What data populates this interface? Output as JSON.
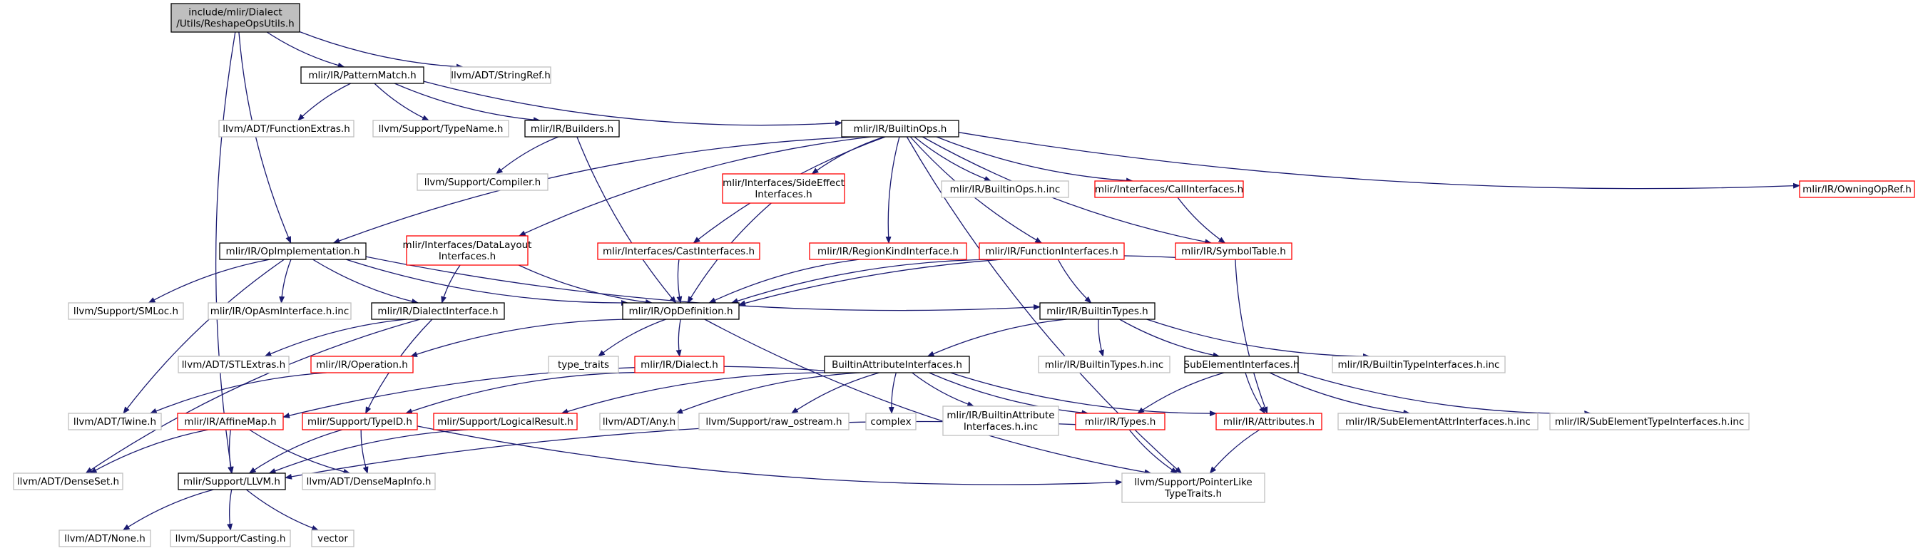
{
  "colors": {
    "edge": "#191970",
    "root_fill": "#bfbfbf",
    "normal_border": "#000000",
    "missing_border": "#bfbfbf",
    "truncated_border": "#ff0000"
  },
  "nodes": [
    {
      "id": "root",
      "lines": [
        "include/mlir/Dialect",
        "/Utils/ReshapeOpsUtils.h"
      ],
      "style": "root"
    },
    {
      "id": "patternmatch",
      "lines": [
        "mlir/IR/PatternMatch.h"
      ],
      "style": "normal"
    },
    {
      "id": "stringref",
      "lines": [
        "llvm/ADT/StringRef.h"
      ],
      "style": "missing"
    },
    {
      "id": "functionextras",
      "lines": [
        "llvm/ADT/FunctionExtras.h"
      ],
      "style": "missing"
    },
    {
      "id": "typename",
      "lines": [
        "llvm/Support/TypeName.h"
      ],
      "style": "missing"
    },
    {
      "id": "builders",
      "lines": [
        "mlir/IR/Builders.h"
      ],
      "style": "normal"
    },
    {
      "id": "builtinops",
      "lines": [
        "mlir/IR/BuiltinOps.h"
      ],
      "style": "normal"
    },
    {
      "id": "compiler",
      "lines": [
        "llvm/Support/Compiler.h"
      ],
      "style": "missing"
    },
    {
      "id": "sideeffect",
      "lines": [
        "mlir/Interfaces/SideEffect",
        "Interfaces.h"
      ],
      "style": "red"
    },
    {
      "id": "builtinopsinc",
      "lines": [
        "mlir/IR/BuiltinOps.h.inc"
      ],
      "style": "missing"
    },
    {
      "id": "callinterfaces",
      "lines": [
        "mlir/Interfaces/CallInterfaces.h"
      ],
      "style": "red"
    },
    {
      "id": "owningopref",
      "lines": [
        "mlir/IR/OwningOpRef.h"
      ],
      "style": "red"
    },
    {
      "id": "opimplementation",
      "lines": [
        "mlir/IR/OpImplementation.h"
      ],
      "style": "normal"
    },
    {
      "id": "datalayout",
      "lines": [
        "mlir/Interfaces/DataLayout",
        "Interfaces.h"
      ],
      "style": "red"
    },
    {
      "id": "castinterfaces",
      "lines": [
        "mlir/Interfaces/CastInterfaces.h"
      ],
      "style": "red"
    },
    {
      "id": "regionkind",
      "lines": [
        "mlir/IR/RegionKindInterface.h"
      ],
      "style": "red"
    },
    {
      "id": "functioninterfaces",
      "lines": [
        "mlir/IR/FunctionInterfaces.h"
      ],
      "style": "red"
    },
    {
      "id": "symboltable",
      "lines": [
        "mlir/IR/SymbolTable.h"
      ],
      "style": "red"
    },
    {
      "id": "smloc",
      "lines": [
        "llvm/Support/SMLoc.h"
      ],
      "style": "missing"
    },
    {
      "id": "opasminc",
      "lines": [
        "mlir/IR/OpAsmInterface.h.inc"
      ],
      "style": "missing"
    },
    {
      "id": "dialectinterface",
      "lines": [
        "mlir/IR/DialectInterface.h"
      ],
      "style": "normal"
    },
    {
      "id": "opdefinition",
      "lines": [
        "mlir/IR/OpDefinition.h"
      ],
      "style": "normal"
    },
    {
      "id": "builtintypes",
      "lines": [
        "mlir/IR/BuiltinTypes.h"
      ],
      "style": "normal"
    },
    {
      "id": "stlextras",
      "lines": [
        "llvm/ADT/STLExtras.h"
      ],
      "style": "missing"
    },
    {
      "id": "operation",
      "lines": [
        "mlir/IR/Operation.h"
      ],
      "style": "red"
    },
    {
      "id": "typetraits",
      "lines": [
        "type_traits"
      ],
      "style": "missing"
    },
    {
      "id": "dialect",
      "lines": [
        "mlir/IR/Dialect.h"
      ],
      "style": "red"
    },
    {
      "id": "builtinattrinterfaces",
      "lines": [
        "BuiltinAttributeInterfaces.h"
      ],
      "style": "normal"
    },
    {
      "id": "builtintypesinc",
      "lines": [
        "mlir/IR/BuiltinTypes.h.inc"
      ],
      "style": "missing"
    },
    {
      "id": "subelementinterfaces",
      "lines": [
        "SubElementInterfaces.h"
      ],
      "style": "normal"
    },
    {
      "id": "builtintypeinterfacesinc",
      "lines": [
        "mlir/IR/BuiltinTypeInterfaces.h.inc"
      ],
      "style": "missing"
    },
    {
      "id": "twine",
      "lines": [
        "llvm/ADT/Twine.h"
      ],
      "style": "missing"
    },
    {
      "id": "affinemap",
      "lines": [
        "mlir/IR/AffineMap.h"
      ],
      "style": "red"
    },
    {
      "id": "typeid",
      "lines": [
        "mlir/Support/TypeID.h"
      ],
      "style": "red"
    },
    {
      "id": "logicalresult",
      "lines": [
        "mlir/Support/LogicalResult.h"
      ],
      "style": "red"
    },
    {
      "id": "any",
      "lines": [
        "llvm/ADT/Any.h"
      ],
      "style": "missing"
    },
    {
      "id": "rawostream",
      "lines": [
        "llvm/Support/raw_ostream.h"
      ],
      "style": "missing"
    },
    {
      "id": "complex",
      "lines": [
        "complex"
      ],
      "style": "missing"
    },
    {
      "id": "builtinattrinc",
      "lines": [
        "mlir/IR/BuiltinAttribute",
        "Interfaces.h.inc"
      ],
      "style": "missing"
    },
    {
      "id": "types",
      "lines": [
        "mlir/IR/Types.h"
      ],
      "style": "red"
    },
    {
      "id": "attributes",
      "lines": [
        "mlir/IR/Attributes.h"
      ],
      "style": "red"
    },
    {
      "id": "subelementattrinc",
      "lines": [
        "mlir/IR/SubElementAttrInterfaces.h.inc"
      ],
      "style": "missing"
    },
    {
      "id": "subelementtypeinc",
      "lines": [
        "mlir/IR/SubElementTypeInterfaces.h.inc"
      ],
      "style": "missing"
    },
    {
      "id": "denseset",
      "lines": [
        "llvm/ADT/DenseSet.h"
      ],
      "style": "missing"
    },
    {
      "id": "llvmh",
      "lines": [
        "mlir/Support/LLVM.h"
      ],
      "style": "normal"
    },
    {
      "id": "densemapinfo",
      "lines": [
        "llvm/ADT/DenseMapInfo.h"
      ],
      "style": "missing"
    },
    {
      "id": "pointerlike",
      "lines": [
        "llvm/Support/PointerLike",
        "TypeTraits.h"
      ],
      "style": "missing"
    },
    {
      "id": "none",
      "lines": [
        "llvm/ADT/None.h"
      ],
      "style": "missing"
    },
    {
      "id": "casting",
      "lines": [
        "llvm/Support/Casting.h"
      ],
      "style": "missing"
    },
    {
      "id": "vector",
      "lines": [
        "vector"
      ],
      "style": "missing"
    }
  ],
  "edges": [
    [
      "root",
      "patternmatch"
    ],
    [
      "root",
      "stringref"
    ],
    [
      "root",
      "opimplementation"
    ],
    [
      "root",
      "llvmh"
    ],
    [
      "patternmatch",
      "functionextras"
    ],
    [
      "patternmatch",
      "typename"
    ],
    [
      "patternmatch",
      "builders"
    ],
    [
      "patternmatch",
      "builtinops"
    ],
    [
      "builders",
      "compiler"
    ],
    [
      "builders",
      "opdefinition"
    ],
    [
      "builtinops",
      "opimplementation"
    ],
    [
      "builtinops",
      "sideeffect"
    ],
    [
      "builtinops",
      "datalayout"
    ],
    [
      "builtinops",
      "castinterfaces"
    ],
    [
      "builtinops",
      "regionkind"
    ],
    [
      "builtinops",
      "functioninterfaces"
    ],
    [
      "builtinops",
      "builtinopsinc"
    ],
    [
      "builtinops",
      "callinterfaces"
    ],
    [
      "builtinops",
      "symboltable"
    ],
    [
      "builtinops",
      "owningopref"
    ],
    [
      "builtinops",
      "pointerlike"
    ],
    [
      "sideeffect",
      "opdefinition"
    ],
    [
      "callinterfaces",
      "symboltable"
    ],
    [
      "symboltable",
      "opdefinition"
    ],
    [
      "symboltable",
      "attributes"
    ],
    [
      "opimplementation",
      "smloc"
    ],
    [
      "opimplementation",
      "opasminc"
    ],
    [
      "opimplementation",
      "dialectinterface"
    ],
    [
      "opimplementation",
      "opdefinition"
    ],
    [
      "opimplementation",
      "builtintypes"
    ],
    [
      "opimplementation",
      "twine"
    ],
    [
      "datalayout",
      "dialectinterface"
    ],
    [
      "datalayout",
      "opdefinition"
    ],
    [
      "castinterfaces",
      "opdefinition"
    ],
    [
      "regionkind",
      "opdefinition"
    ],
    [
      "functioninterfaces",
      "opdefinition"
    ],
    [
      "functioninterfaces",
      "builtintypes"
    ],
    [
      "dialectinterface",
      "stlextras"
    ],
    [
      "dialectinterface",
      "denseset"
    ],
    [
      "dialectinterface",
      "typeid"
    ],
    [
      "opdefinition",
      "operation"
    ],
    [
      "opdefinition",
      "typetraits"
    ],
    [
      "opdefinition",
      "dialect"
    ],
    [
      "opdefinition",
      "pointerlike"
    ],
    [
      "operation",
      "twine"
    ],
    [
      "dialect",
      "typeid"
    ],
    [
      "builtintypes",
      "builtinattrinterfaces"
    ],
    [
      "builtintypes",
      "builtintypesinc"
    ],
    [
      "builtintypes",
      "subelementinterfaces"
    ],
    [
      "builtintypes",
      "builtintypeinterfacesinc"
    ],
    [
      "builtinattrinterfaces",
      "affinemap"
    ],
    [
      "builtinattrinterfaces",
      "logicalresult"
    ],
    [
      "builtinattrinterfaces",
      "any"
    ],
    [
      "builtinattrinterfaces",
      "rawostream"
    ],
    [
      "builtinattrinterfaces",
      "complex"
    ],
    [
      "builtinattrinterfaces",
      "builtinattrinc"
    ],
    [
      "builtinattrinterfaces",
      "types"
    ],
    [
      "builtinattrinterfaces",
      "attributes"
    ],
    [
      "subelementinterfaces",
      "types"
    ],
    [
      "subelementinterfaces",
      "attributes"
    ],
    [
      "subelementinterfaces",
      "subelementattrinc"
    ],
    [
      "subelementinterfaces",
      "subelementtypeinc"
    ],
    [
      "affinemap",
      "denseset"
    ],
    [
      "affinemap",
      "llvmh"
    ],
    [
      "affinemap",
      "densemapinfo"
    ],
    [
      "typeid",
      "llvmh"
    ],
    [
      "typeid",
      "densemapinfo"
    ],
    [
      "typeid",
      "pointerlike"
    ],
    [
      "logicalresult",
      "llvmh"
    ],
    [
      "types",
      "llvmh"
    ],
    [
      "types",
      "pointerlike"
    ],
    [
      "attributes",
      "pointerlike"
    ],
    [
      "llvmh",
      "none"
    ],
    [
      "llvmh",
      "casting"
    ],
    [
      "llvmh",
      "vector"
    ]
  ]
}
